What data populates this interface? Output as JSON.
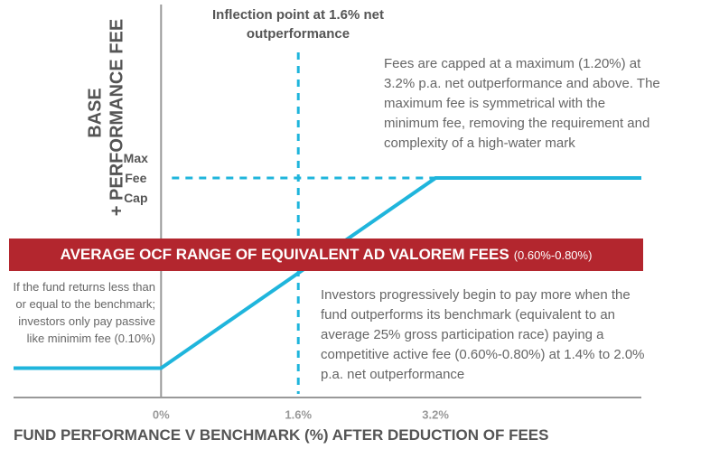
{
  "chart_data": {
    "type": "line",
    "y_label": [
      "BASE",
      "+ PERFORMANCE FEE"
    ],
    "x_label": "FUND PERFORMANCE V BENCHMARK (%) AFTER DEDUCTION OF FEES",
    "annotations": {
      "inflection": "Inflection point at 1.6% net outperformance",
      "cap_note": "Fees are capped at a maximum (1.20%) at 3.2% p.a. net outperformance and above. The maximum fee is symmetrical with the minimum fee, removing the requirement and complexity of a high-water mark",
      "min_note": "If the fund returns less than or equal to the benchmark; investors only pay passive like minimim fee (0.10%)",
      "progressive_note": "Investors progressively begin to pay more when the fund outperforms its benchmark (equivalent to an average 25% gross participation race) paying a competitive active fee (0.60%-0.80%) at 1.4% to 2.0% p.a. net outperformance"
    },
    "band": {
      "label": "AVERAGE OCF RANGE OF EQUIVALENT AD VALOREM FEES",
      "range_label": "(0.60%-0.80%)"
    },
    "x": [
      -1.72,
      0,
      3.2,
      5.6
    ],
    "series": [
      {
        "color": "#1fb5dc",
        "values": [
          0.1,
          0.1,
          1.2,
          1.2
        ]
      }
    ],
    "xlim": [
      -1.72,
      5.6
    ],
    "xticks": [
      {
        "value": 0,
        "label": "0%"
      },
      {
        "value": 1.6,
        "label": "1.6%"
      },
      {
        "value": 3.2,
        "label": "3.2%"
      }
    ],
    "ylim": [
      -0.07,
      2.23
    ],
    "yticks": [
      {
        "value": 1.2,
        "label": "Max Fee Cap"
      }
    ],
    "grid": false
  }
}
